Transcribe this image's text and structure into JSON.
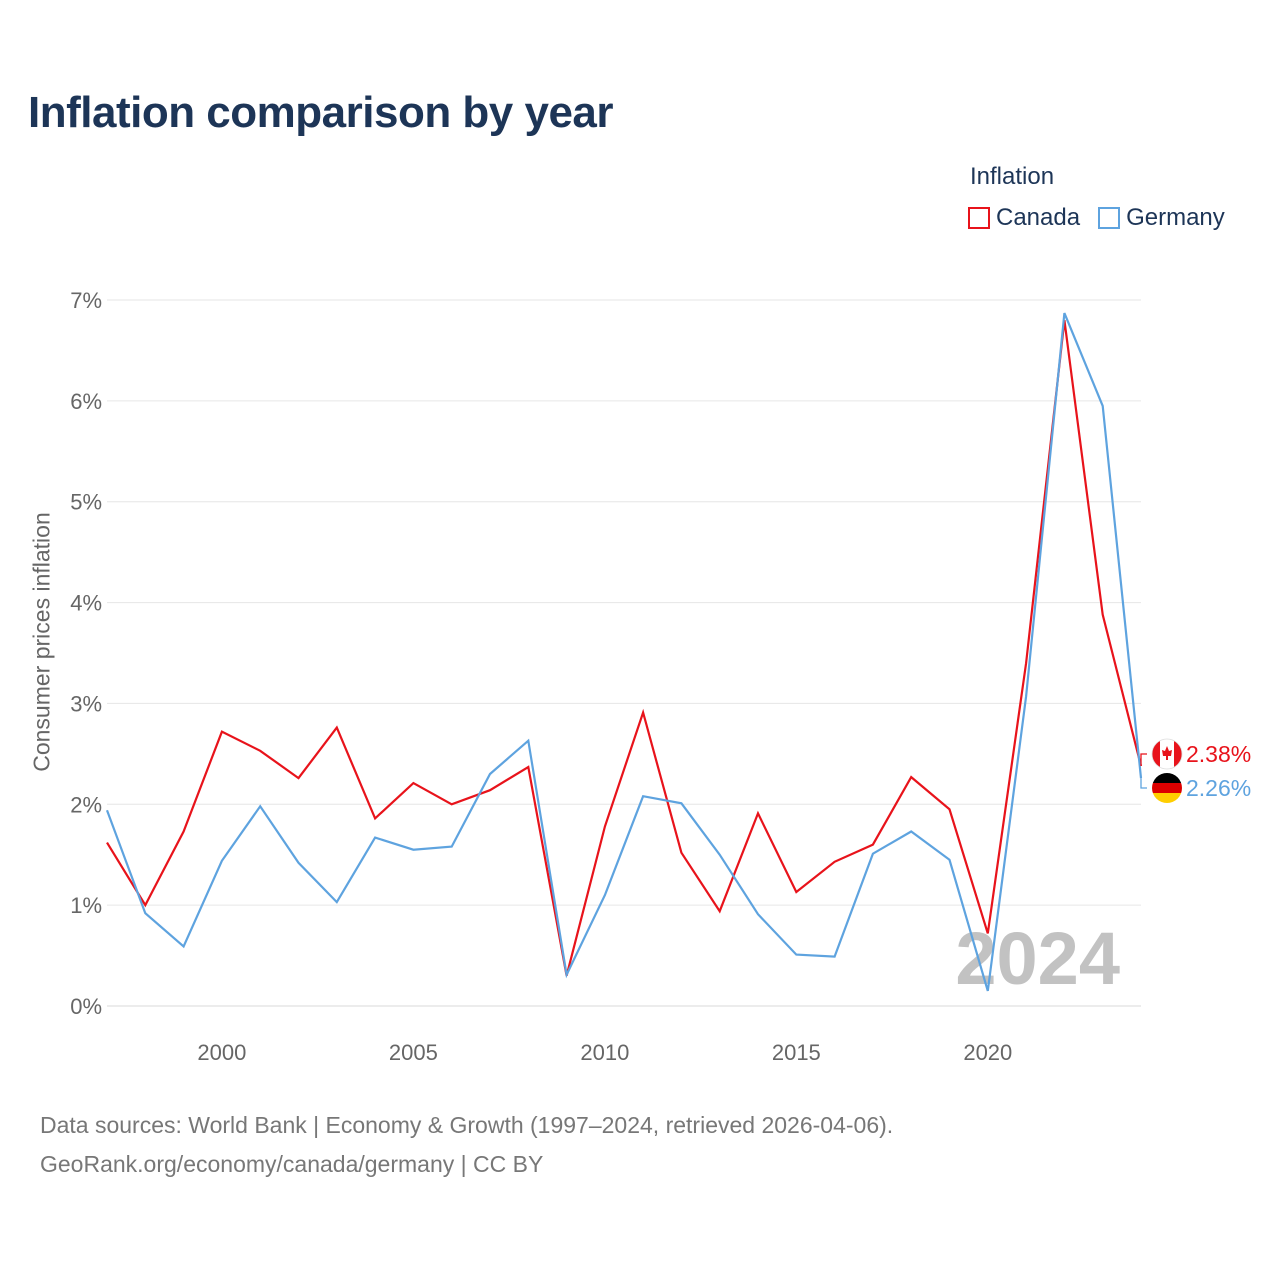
{
  "title": "Inflation comparison by year",
  "legend": {
    "title": "Inflation",
    "items": [
      {
        "label": "Canada",
        "color": "#e8131b"
      },
      {
        "label": "Germany",
        "color": "#5ea3df"
      }
    ]
  },
  "year_label": "2024",
  "footer": {
    "line1": "Data sources: World Bank | Economy & Growth (1997–2024, retrieved 2026-04-06).",
    "line2": "GeoRank.org/economy/canada/germany | CC BY"
  },
  "chart_data": {
    "type": "line",
    "title": "Inflation comparison by year",
    "xlabel": "",
    "ylabel": "Consumer prices inflation",
    "xlim": [
      1997,
      2024
    ],
    "ylim": [
      0,
      7
    ],
    "x_ticks": [
      2000,
      2005,
      2010,
      2015,
      2020
    ],
    "y_ticks": [
      0,
      1,
      2,
      3,
      4,
      5,
      6,
      7
    ],
    "y_tick_labels": [
      "0%",
      "1%",
      "2%",
      "3%",
      "4%",
      "5%",
      "6%",
      "7%"
    ],
    "grid": true,
    "legend_position": "top-right",
    "x": [
      1997,
      1998,
      1999,
      2000,
      2001,
      2002,
      2003,
      2004,
      2005,
      2006,
      2007,
      2008,
      2009,
      2010,
      2011,
      2012,
      2013,
      2014,
      2015,
      2016,
      2017,
      2018,
      2019,
      2020,
      2021,
      2022,
      2023,
      2024
    ],
    "series": [
      {
        "name": "Canada",
        "color": "#e8131b",
        "values": [
          1.62,
          1.0,
          1.73,
          2.72,
          2.53,
          2.26,
          2.76,
          1.86,
          2.21,
          2.0,
          2.14,
          2.37,
          0.3,
          1.78,
          2.91,
          1.52,
          0.94,
          1.91,
          1.13,
          1.43,
          1.6,
          2.27,
          1.95,
          0.72,
          3.4,
          6.8,
          3.88,
          2.38
        ],
        "end_label": "2.38%"
      },
      {
        "name": "Germany",
        "color": "#5ea3df",
        "values": [
          1.94,
          0.92,
          0.59,
          1.44,
          1.98,
          1.42,
          1.03,
          1.67,
          1.55,
          1.58,
          2.3,
          2.63,
          0.31,
          1.1,
          2.08,
          2.01,
          1.5,
          0.91,
          0.51,
          0.49,
          1.51,
          1.73,
          1.45,
          0.15,
          3.07,
          6.87,
          5.95,
          2.26
        ],
        "end_label": "2.26%"
      }
    ]
  }
}
